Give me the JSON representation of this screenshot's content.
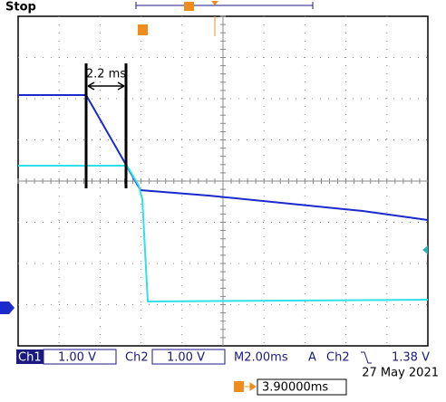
{
  "status": "Stop",
  "annotation": "2.2 ms",
  "bottom_bar": {
    "ch1": "Ch1",
    "ch1_scale": "1.00 V",
    "ch2": "Ch2",
    "ch2_scale": "1.00 V",
    "timebase": "M2.00ms",
    "trigger_mode": "A",
    "trigger_source": "Ch2",
    "trigger_level": "1.38 V"
  },
  "date": "27 May 2021",
  "trigger_position": "3.90000ms"
}
